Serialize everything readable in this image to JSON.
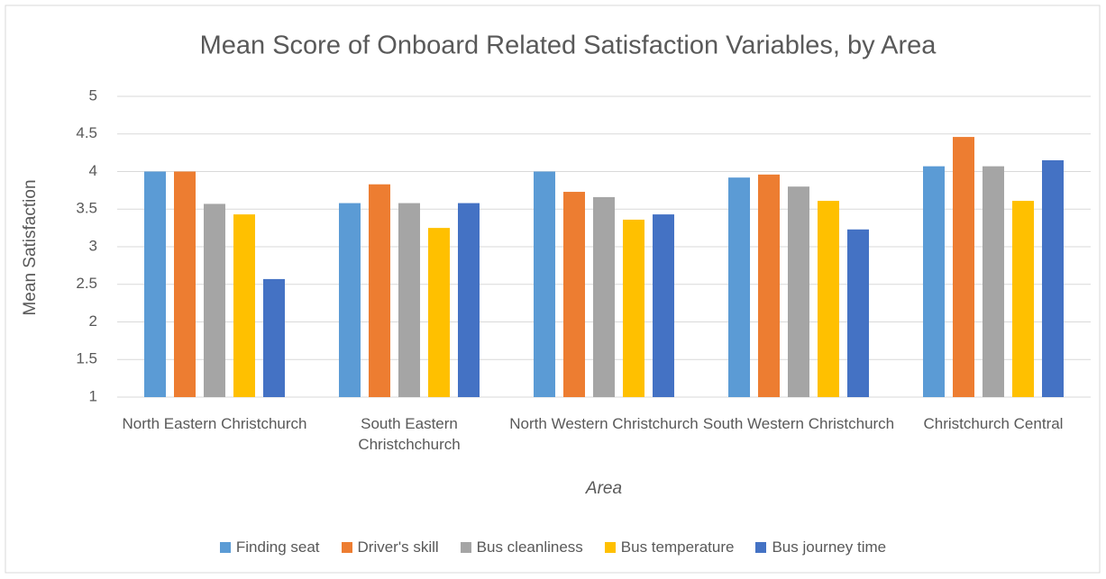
{
  "chart_data": {
    "type": "bar",
    "title": "Mean Score of Onboard Related Satisfaction Variables, by Area",
    "y_label": "Mean  Satisfaction",
    "x_label": "Area",
    "categories": [
      "North Eastern Christchurch",
      "South Eastern Christchchurch",
      "North Western Christchurch",
      "South Western Christchurch",
      "Christchurch Central"
    ],
    "series": [
      {
        "name": "Finding seat",
        "color": "#5b9bd5",
        "values": [
          4.0,
          3.58,
          4.0,
          3.92,
          4.07
        ]
      },
      {
        "name": "Driver's skill",
        "color": "#ed7d31",
        "values": [
          4.0,
          3.83,
          3.73,
          3.96,
          4.46
        ]
      },
      {
        "name": "Bus cleanliness",
        "color": "#a5a5a5",
        "values": [
          3.57,
          3.58,
          3.66,
          3.8,
          4.07
        ]
      },
      {
        "name": "Bus temperature",
        "color": "#ffc000",
        "values": [
          3.43,
          3.25,
          3.36,
          3.61,
          3.61
        ]
      },
      {
        "name": "Bus journey time",
        "color": "#4472c4",
        "values": [
          2.57,
          3.58,
          3.43,
          3.23,
          4.15
        ]
      }
    ],
    "ylim": [
      1,
      5
    ],
    "yticks": [
      1,
      1.5,
      2,
      2.5,
      3,
      3.5,
      4,
      4.5,
      5
    ],
    "grid": true,
    "legend": "bottom"
  }
}
